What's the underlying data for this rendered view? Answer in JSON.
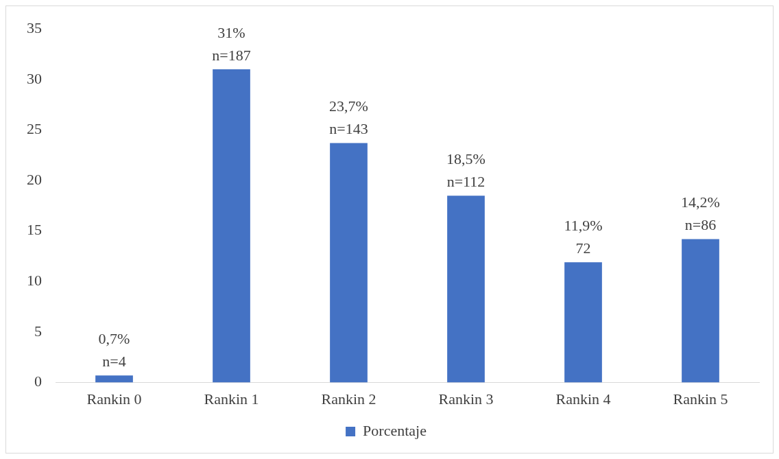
{
  "chart_data": {
    "type": "bar",
    "categories": [
      "Rankin 0",
      "Rankin 1",
      "Rankin 2",
      "Rankin 3",
      "Rankin 4",
      "Rankin 5"
    ],
    "series": [
      {
        "name": "Porcentaje",
        "color": "#4472c4",
        "values": [
          0.7,
          31,
          23.7,
          18.5,
          11.9,
          14.2
        ],
        "value_labels": [
          "0,7%\nn=4",
          "31%\nn=187",
          "23,7%\nn=143",
          "18,5%\nn=112",
          "11,9%\n72",
          "14,2%\nn=86"
        ]
      }
    ],
    "ylim": [
      0,
      35
    ],
    "yticks": [
      0,
      5,
      10,
      15,
      20,
      25,
      30,
      35
    ],
    "grid": false,
    "legend": "bottom"
  }
}
